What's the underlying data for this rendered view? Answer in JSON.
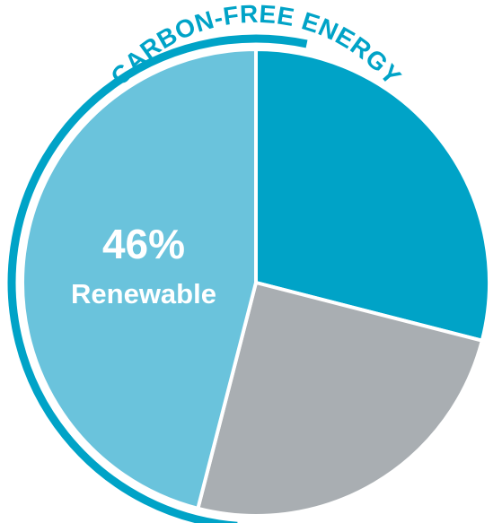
{
  "chart_data": {
    "type": "pie",
    "title": "CARBON-FREE ENERGY",
    "slices": [
      {
        "name": "",
        "value": 29,
        "color": "#00a3c7"
      },
      {
        "name": "",
        "value": 25,
        "color": "#a9aeb2"
      },
      {
        "name": "Renewable",
        "value": 46,
        "color": "#6ac3dc"
      }
    ],
    "annotation": {
      "value_text": "46%",
      "name_text": "Renewable"
    },
    "arc_color": "#00a3c7"
  }
}
